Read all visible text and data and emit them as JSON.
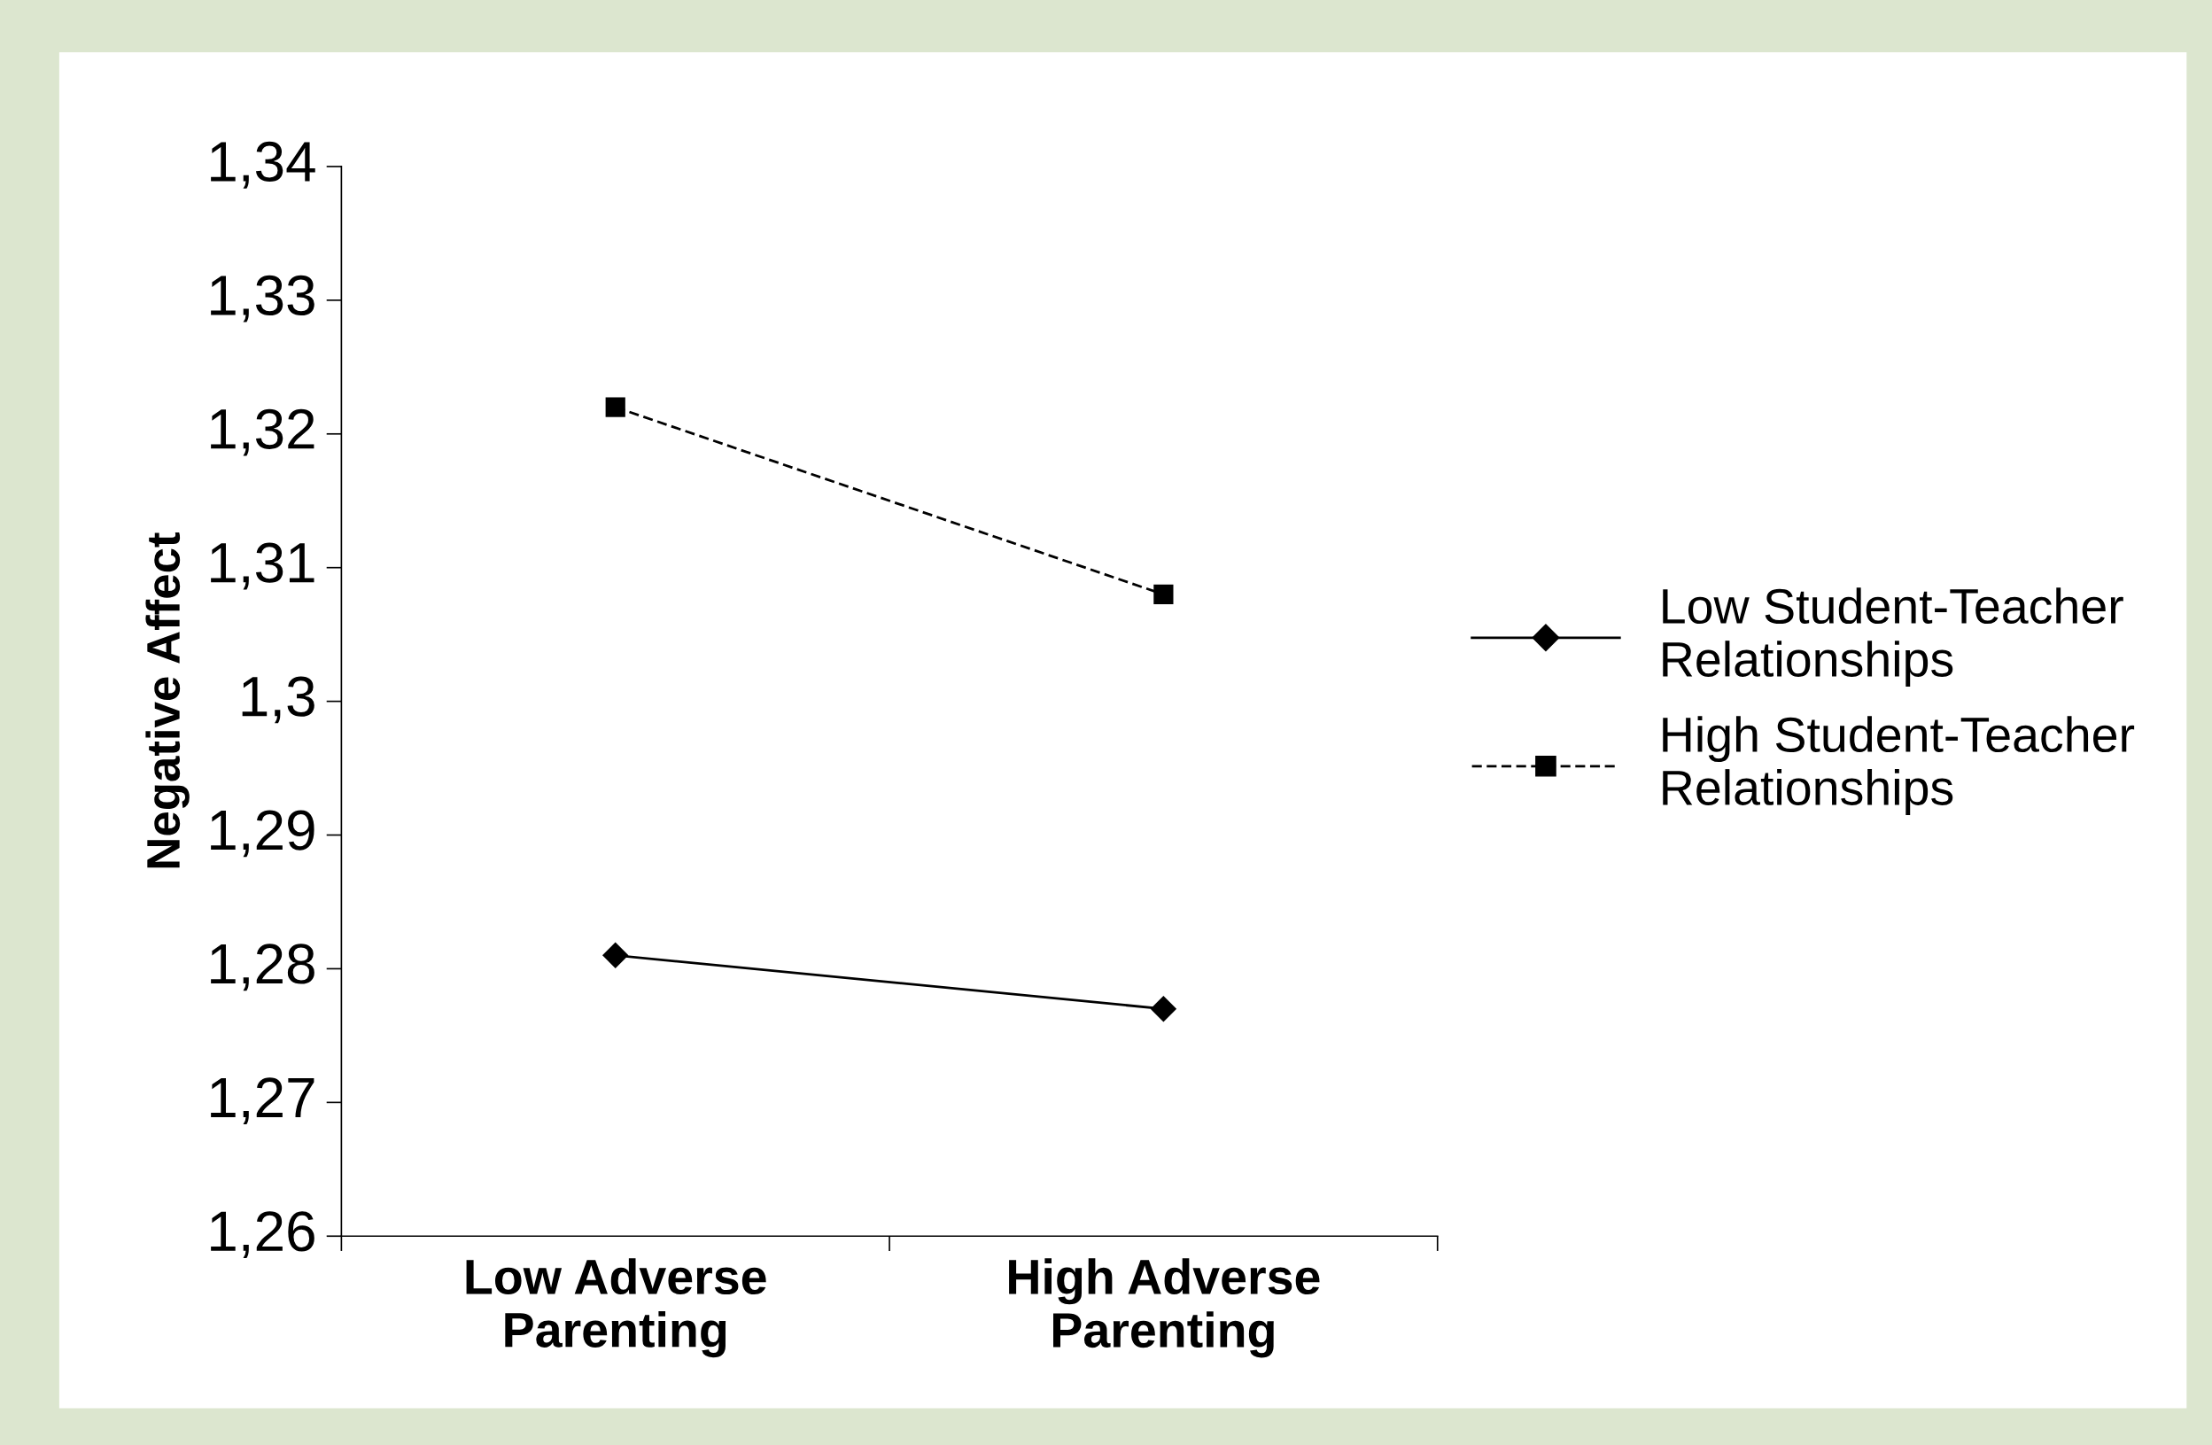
{
  "chart_data": {
    "type": "line",
    "ylabel": "Negative Affect",
    "categories": [
      "Low Adverse\nParenting",
      "High Adverse\nParenting"
    ],
    "series": [
      {
        "name": "Low Student-Teacher\nRelationships",
        "color": "#000000",
        "values": [
          1.281,
          1.277
        ],
        "marker": "diamond",
        "line_style": "solid"
      },
      {
        "name": "High Student-Teacher\nRelationships",
        "color": "#000000",
        "values": [
          1.322,
          1.308
        ],
        "marker": "square",
        "line_style": "dashed"
      }
    ],
    "ylim": [
      1.26,
      1.34
    ],
    "yticks": [
      {
        "value": 1.26,
        "label": "1,26"
      },
      {
        "value": 1.27,
        "label": "1,27"
      },
      {
        "value": 1.28,
        "label": "1,28"
      },
      {
        "value": 1.29,
        "label": "1,29"
      },
      {
        "value": 1.3,
        "label": "1,3"
      },
      {
        "value": 1.31,
        "label": "1,31"
      },
      {
        "value": 1.32,
        "label": "1,32"
      },
      {
        "value": 1.33,
        "label": "1,33"
      },
      {
        "value": 1.34,
        "label": "1,34"
      }
    ],
    "grid": false,
    "legend": "right"
  }
}
